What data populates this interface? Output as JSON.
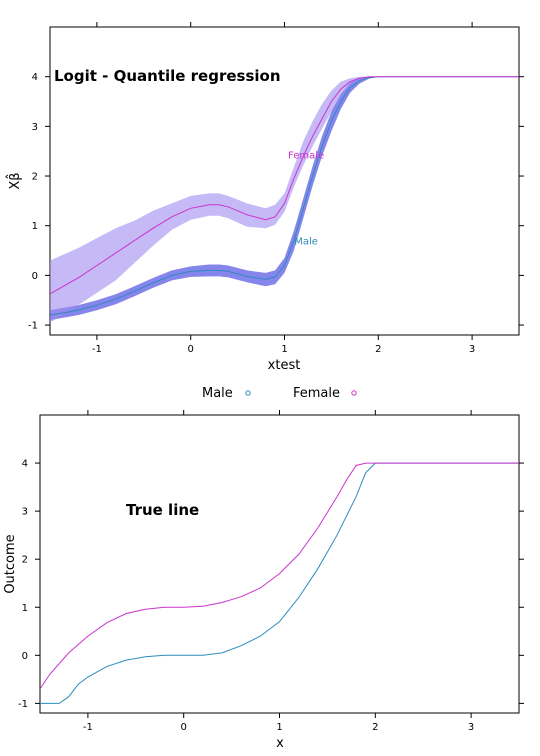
{
  "chart_data": [
    {
      "type": "line",
      "title": "Logit - Quantile regression",
      "xlabel": "xtest",
      "ylabel": "Xβ̂",
      "xlim": [
        -1.5,
        3.5
      ],
      "ylim": [
        -1.2,
        5.0
      ],
      "xticks": [
        "-1",
        "0",
        "1",
        "2",
        "3"
      ],
      "yticks": [
        "-1",
        "0",
        "1",
        "2",
        "3",
        "4"
      ],
      "legend": {
        "placement": "bottom",
        "entries": [
          "Male",
          "Female"
        ]
      },
      "series": [
        {
          "name": "Male",
          "color": "#2b8cbe",
          "band_color": "#3333dd",
          "x": [
            -1.5,
            -1.2,
            -1.0,
            -0.8,
            -0.6,
            -0.4,
            -0.2,
            0.0,
            0.2,
            0.3,
            0.4,
            0.6,
            0.8,
            0.9,
            1.0,
            1.1,
            1.2,
            1.3,
            1.4,
            1.5,
            1.6,
            1.7,
            1.8,
            1.9,
            2.0,
            2.2,
            2.5,
            3.0,
            3.5
          ],
          "values": [
            -0.8,
            -0.7,
            -0.6,
            -0.48,
            -0.32,
            -0.15,
            0.0,
            0.08,
            0.1,
            0.1,
            0.08,
            -0.02,
            -0.08,
            -0.03,
            0.2,
            0.7,
            1.35,
            2.0,
            2.6,
            3.1,
            3.5,
            3.78,
            3.92,
            3.98,
            4.0,
            4.0,
            4.0,
            4.0,
            4.0
          ],
          "lower": [
            -0.9,
            -0.8,
            -0.7,
            -0.58,
            -0.42,
            -0.25,
            -0.1,
            -0.03,
            -0.02,
            -0.02,
            -0.04,
            -0.14,
            -0.22,
            -0.18,
            0.05,
            0.5,
            1.15,
            1.8,
            2.4,
            2.9,
            3.35,
            3.68,
            3.86,
            3.96,
            4.0,
            4.0,
            4.0,
            4.0,
            4.0
          ],
          "upper": [
            -0.7,
            -0.6,
            -0.5,
            -0.38,
            -0.22,
            -0.05,
            0.1,
            0.18,
            0.22,
            0.22,
            0.2,
            0.1,
            0.05,
            0.1,
            0.35,
            0.9,
            1.55,
            2.2,
            2.8,
            3.3,
            3.65,
            3.88,
            3.97,
            4.0,
            4.0,
            4.0,
            4.0,
            4.0,
            4.0
          ]
        },
        {
          "name": "Female",
          "color": "#cc33cc",
          "band_color": "#9e8cf0",
          "x": [
            -1.5,
            -1.2,
            -1.0,
            -0.8,
            -0.6,
            -0.4,
            -0.2,
            0.0,
            0.2,
            0.3,
            0.4,
            0.6,
            0.8,
            0.9,
            1.0,
            1.1,
            1.2,
            1.3,
            1.4,
            1.5,
            1.6,
            1.7,
            1.8,
            1.9,
            2.0,
            2.2,
            2.5,
            3.0,
            3.5
          ],
          "values": [
            -0.37,
            -0.05,
            0.2,
            0.45,
            0.7,
            0.95,
            1.18,
            1.35,
            1.42,
            1.42,
            1.38,
            1.22,
            1.12,
            1.18,
            1.45,
            1.95,
            2.4,
            2.8,
            3.15,
            3.5,
            3.75,
            3.9,
            3.97,
            4.0,
            4.0,
            4.0,
            4.0,
            4.0,
            4.0
          ],
          "lower": [
            -0.95,
            -0.6,
            -0.35,
            -0.1,
            0.25,
            0.6,
            0.92,
            1.12,
            1.2,
            1.2,
            1.15,
            0.98,
            0.95,
            1.02,
            1.28,
            1.78,
            2.22,
            2.6,
            2.95,
            3.3,
            3.62,
            3.84,
            3.94,
            3.99,
            4.0,
            4.0,
            4.0,
            4.0,
            4.0
          ],
          "upper": [
            0.3,
            0.55,
            0.75,
            0.95,
            1.1,
            1.3,
            1.45,
            1.6,
            1.65,
            1.65,
            1.6,
            1.45,
            1.35,
            1.42,
            1.65,
            2.18,
            2.7,
            3.1,
            3.45,
            3.72,
            3.9,
            3.97,
            4.0,
            4.0,
            4.0,
            4.0,
            4.0,
            4.0,
            4.0
          ]
        }
      ],
      "curve_labels": [
        {
          "text": "Female",
          "x": 1.23,
          "y": 2.35,
          "color": "#cc33cc"
        },
        {
          "text": "Male",
          "x": 1.23,
          "y": 0.62,
          "color": "#2b8cbe"
        }
      ]
    },
    {
      "type": "line",
      "title": "True line",
      "xlabel": "x",
      "ylabel": "Outcome",
      "xlim": [
        -1.5,
        3.5
      ],
      "ylim": [
        -1.2,
        5.0
      ],
      "xticks": [
        "-1",
        "0",
        "1",
        "2",
        "3"
      ],
      "yticks": [
        "-1",
        "0",
        "1",
        "2",
        "3",
        "4"
      ],
      "series": [
        {
          "name": "Male",
          "color": "#2b8cbe",
          "x": [
            -1.5,
            -1.3,
            -1.2,
            -1.1,
            -1.0,
            -0.8,
            -0.6,
            -0.4,
            -0.2,
            0.0,
            0.2,
            0.4,
            0.6,
            0.8,
            1.0,
            1.2,
            1.4,
            1.6,
            1.8,
            1.9,
            2.0,
            3.5
          ],
          "values": [
            -1.0,
            -1.0,
            -0.86,
            -0.6,
            -0.45,
            -0.23,
            -0.1,
            -0.03,
            0.0,
            0.0,
            0.0,
            0.05,
            0.2,
            0.4,
            0.7,
            1.2,
            1.8,
            2.5,
            3.3,
            3.8,
            4.0,
            4.0
          ]
        },
        {
          "name": "Female",
          "color": "#cc33cc",
          "x": [
            -1.5,
            -1.4,
            -1.2,
            -1.0,
            -0.8,
            -0.6,
            -0.4,
            -0.2,
            0.0,
            0.2,
            0.4,
            0.6,
            0.8,
            1.0,
            1.2,
            1.4,
            1.6,
            1.7,
            1.8,
            1.9,
            3.5
          ],
          "values": [
            -0.7,
            -0.4,
            0.05,
            0.4,
            0.68,
            0.87,
            0.96,
            1.0,
            1.0,
            1.02,
            1.1,
            1.22,
            1.4,
            1.7,
            2.1,
            2.65,
            3.3,
            3.65,
            3.95,
            4.0,
            4.0
          ]
        }
      ]
    }
  ]
}
